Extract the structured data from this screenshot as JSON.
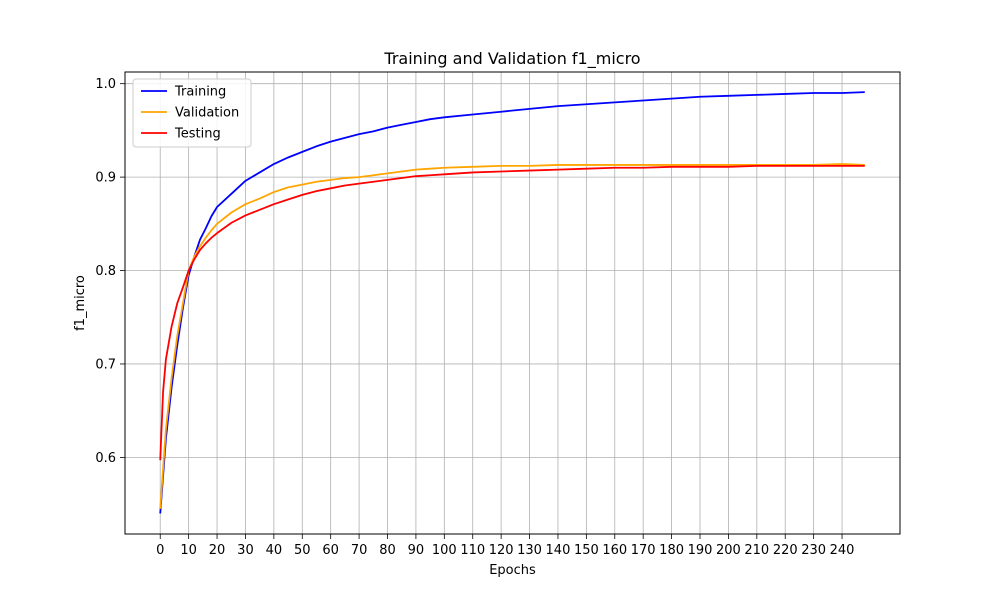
{
  "chart_data": {
    "type": "line",
    "title": "Training and Validation f1_micro",
    "xlabel": "Epochs",
    "ylabel": "f1_micro",
    "xlim": [
      -12.4,
      260.4
    ],
    "ylim": [
      0.518,
      1.0125
    ],
    "xticks": [
      0,
      10,
      20,
      30,
      40,
      50,
      60,
      70,
      80,
      90,
      100,
      110,
      120,
      130,
      140,
      150,
      160,
      170,
      180,
      190,
      200,
      210,
      220,
      230,
      240
    ],
    "yticks": [
      0.6,
      0.7,
      0.8,
      0.9,
      1.0
    ],
    "ytick_labels": [
      "0.6",
      "0.7",
      "0.8",
      "0.9",
      "1.0"
    ],
    "grid": true,
    "legend_position": "top-left",
    "series": [
      {
        "name": "Training",
        "color": "#0000ff",
        "points": [
          [
            0,
            0.54
          ],
          [
            2,
            0.62
          ],
          [
            4,
            0.675
          ],
          [
            6,
            0.72
          ],
          [
            8,
            0.76
          ],
          [
            10,
            0.795
          ],
          [
            12,
            0.815
          ],
          [
            14,
            0.833
          ],
          [
            16,
            0.845
          ],
          [
            18,
            0.858
          ],
          [
            20,
            0.868
          ],
          [
            25,
            0.882
          ],
          [
            30,
            0.896
          ],
          [
            35,
            0.905
          ],
          [
            40,
            0.914
          ],
          [
            45,
            0.921
          ],
          [
            50,
            0.927
          ],
          [
            55,
            0.933
          ],
          [
            60,
            0.938
          ],
          [
            65,
            0.942
          ],
          [
            70,
            0.946
          ],
          [
            75,
            0.949
          ],
          [
            80,
            0.953
          ],
          [
            85,
            0.956
          ],
          [
            90,
            0.959
          ],
          [
            95,
            0.962
          ],
          [
            100,
            0.964
          ],
          [
            110,
            0.967
          ],
          [
            120,
            0.97
          ],
          [
            130,
            0.973
          ],
          [
            140,
            0.976
          ],
          [
            150,
            0.978
          ],
          [
            160,
            0.98
          ],
          [
            170,
            0.982
          ],
          [
            180,
            0.984
          ],
          [
            190,
            0.986
          ],
          [
            200,
            0.987
          ],
          [
            210,
            0.988
          ],
          [
            220,
            0.989
          ],
          [
            230,
            0.99
          ],
          [
            240,
            0.99
          ],
          [
            248,
            0.991
          ]
        ]
      },
      {
        "name": "Validation",
        "color": "#ffa500",
        "points": [
          [
            0,
            0.545
          ],
          [
            2,
            0.63
          ],
          [
            4,
            0.685
          ],
          [
            6,
            0.73
          ],
          [
            8,
            0.765
          ],
          [
            10,
            0.8
          ],
          [
            12,
            0.815
          ],
          [
            14,
            0.826
          ],
          [
            16,
            0.835
          ],
          [
            18,
            0.843
          ],
          [
            20,
            0.85
          ],
          [
            25,
            0.862
          ],
          [
            30,
            0.871
          ],
          [
            35,
            0.877
          ],
          [
            40,
            0.884
          ],
          [
            45,
            0.889
          ],
          [
            50,
            0.892
          ],
          [
            55,
            0.895
          ],
          [
            60,
            0.897
          ],
          [
            65,
            0.899
          ],
          [
            70,
            0.9
          ],
          [
            75,
            0.902
          ],
          [
            80,
            0.904
          ],
          [
            85,
            0.906
          ],
          [
            90,
            0.908
          ],
          [
            95,
            0.909
          ],
          [
            100,
            0.91
          ],
          [
            110,
            0.911
          ],
          [
            120,
            0.912
          ],
          [
            130,
            0.912
          ],
          [
            140,
            0.913
          ],
          [
            150,
            0.913
          ],
          [
            160,
            0.913
          ],
          [
            170,
            0.913
          ],
          [
            180,
            0.913
          ],
          [
            190,
            0.913
          ],
          [
            200,
            0.913
          ],
          [
            210,
            0.913
          ],
          [
            220,
            0.913
          ],
          [
            230,
            0.913
          ],
          [
            240,
            0.914
          ],
          [
            248,
            0.913
          ]
        ]
      },
      {
        "name": "Testing",
        "color": "#ff0000",
        "points": [
          [
            0,
            0.597
          ],
          [
            1,
            0.67
          ],
          [
            2,
            0.705
          ],
          [
            4,
            0.74
          ],
          [
            6,
            0.765
          ],
          [
            8,
            0.782
          ],
          [
            10,
            0.8
          ],
          [
            12,
            0.812
          ],
          [
            14,
            0.822
          ],
          [
            16,
            0.829
          ],
          [
            18,
            0.835
          ],
          [
            20,
            0.84
          ],
          [
            25,
            0.851
          ],
          [
            30,
            0.859
          ],
          [
            35,
            0.865
          ],
          [
            40,
            0.871
          ],
          [
            45,
            0.876
          ],
          [
            50,
            0.881
          ],
          [
            55,
            0.885
          ],
          [
            60,
            0.888
          ],
          [
            65,
            0.891
          ],
          [
            70,
            0.893
          ],
          [
            75,
            0.895
          ],
          [
            80,
            0.897
          ],
          [
            85,
            0.899
          ],
          [
            90,
            0.901
          ],
          [
            95,
            0.902
          ],
          [
            100,
            0.903
          ],
          [
            110,
            0.905
          ],
          [
            120,
            0.906
          ],
          [
            130,
            0.907
          ],
          [
            140,
            0.908
          ],
          [
            150,
            0.909
          ],
          [
            160,
            0.91
          ],
          [
            170,
            0.91
          ],
          [
            180,
            0.911
          ],
          [
            190,
            0.911
          ],
          [
            200,
            0.911
          ],
          [
            210,
            0.912
          ],
          [
            220,
            0.912
          ],
          [
            230,
            0.912
          ],
          [
            240,
            0.912
          ],
          [
            248,
            0.912
          ]
        ]
      }
    ]
  }
}
